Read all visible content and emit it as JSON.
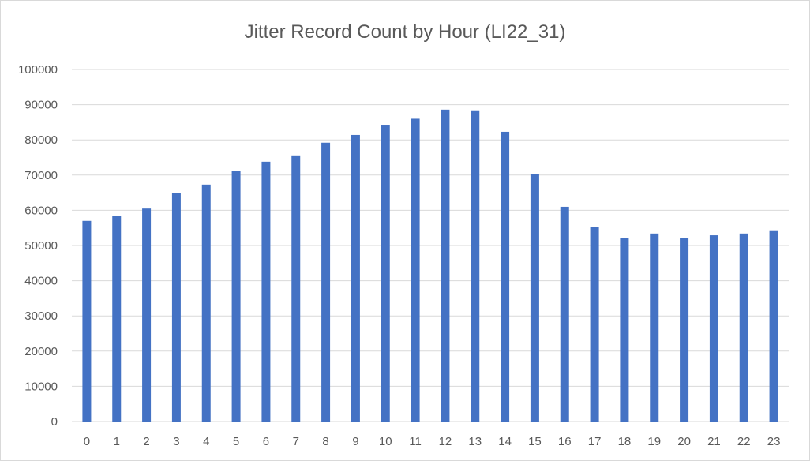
{
  "chart_data": {
    "type": "bar",
    "title": "Jitter Record Count by Hour (LI22_31)",
    "xlabel": "",
    "ylabel": "",
    "ylim": [
      0,
      100000
    ],
    "y_ticks": [
      "0",
      "10000",
      "20000",
      "30000",
      "40000",
      "50000",
      "60000",
      "70000",
      "80000",
      "90000",
      "100000"
    ],
    "grid": "horizontal",
    "legend": "none",
    "bar_color": "#4472C4",
    "categories": [
      "0",
      "1",
      "2",
      "3",
      "4",
      "5",
      "6",
      "7",
      "8",
      "9",
      "10",
      "11",
      "12",
      "13",
      "14",
      "15",
      "16",
      "17",
      "18",
      "19",
      "20",
      "21",
      "22",
      "23"
    ],
    "values": [
      57000,
      58300,
      60500,
      65000,
      67300,
      71300,
      73800,
      75600,
      79200,
      81400,
      84300,
      86000,
      88600,
      88400,
      82300,
      70400,
      61000,
      55200,
      52200,
      53400,
      52200,
      52900,
      53400,
      54100
    ]
  }
}
